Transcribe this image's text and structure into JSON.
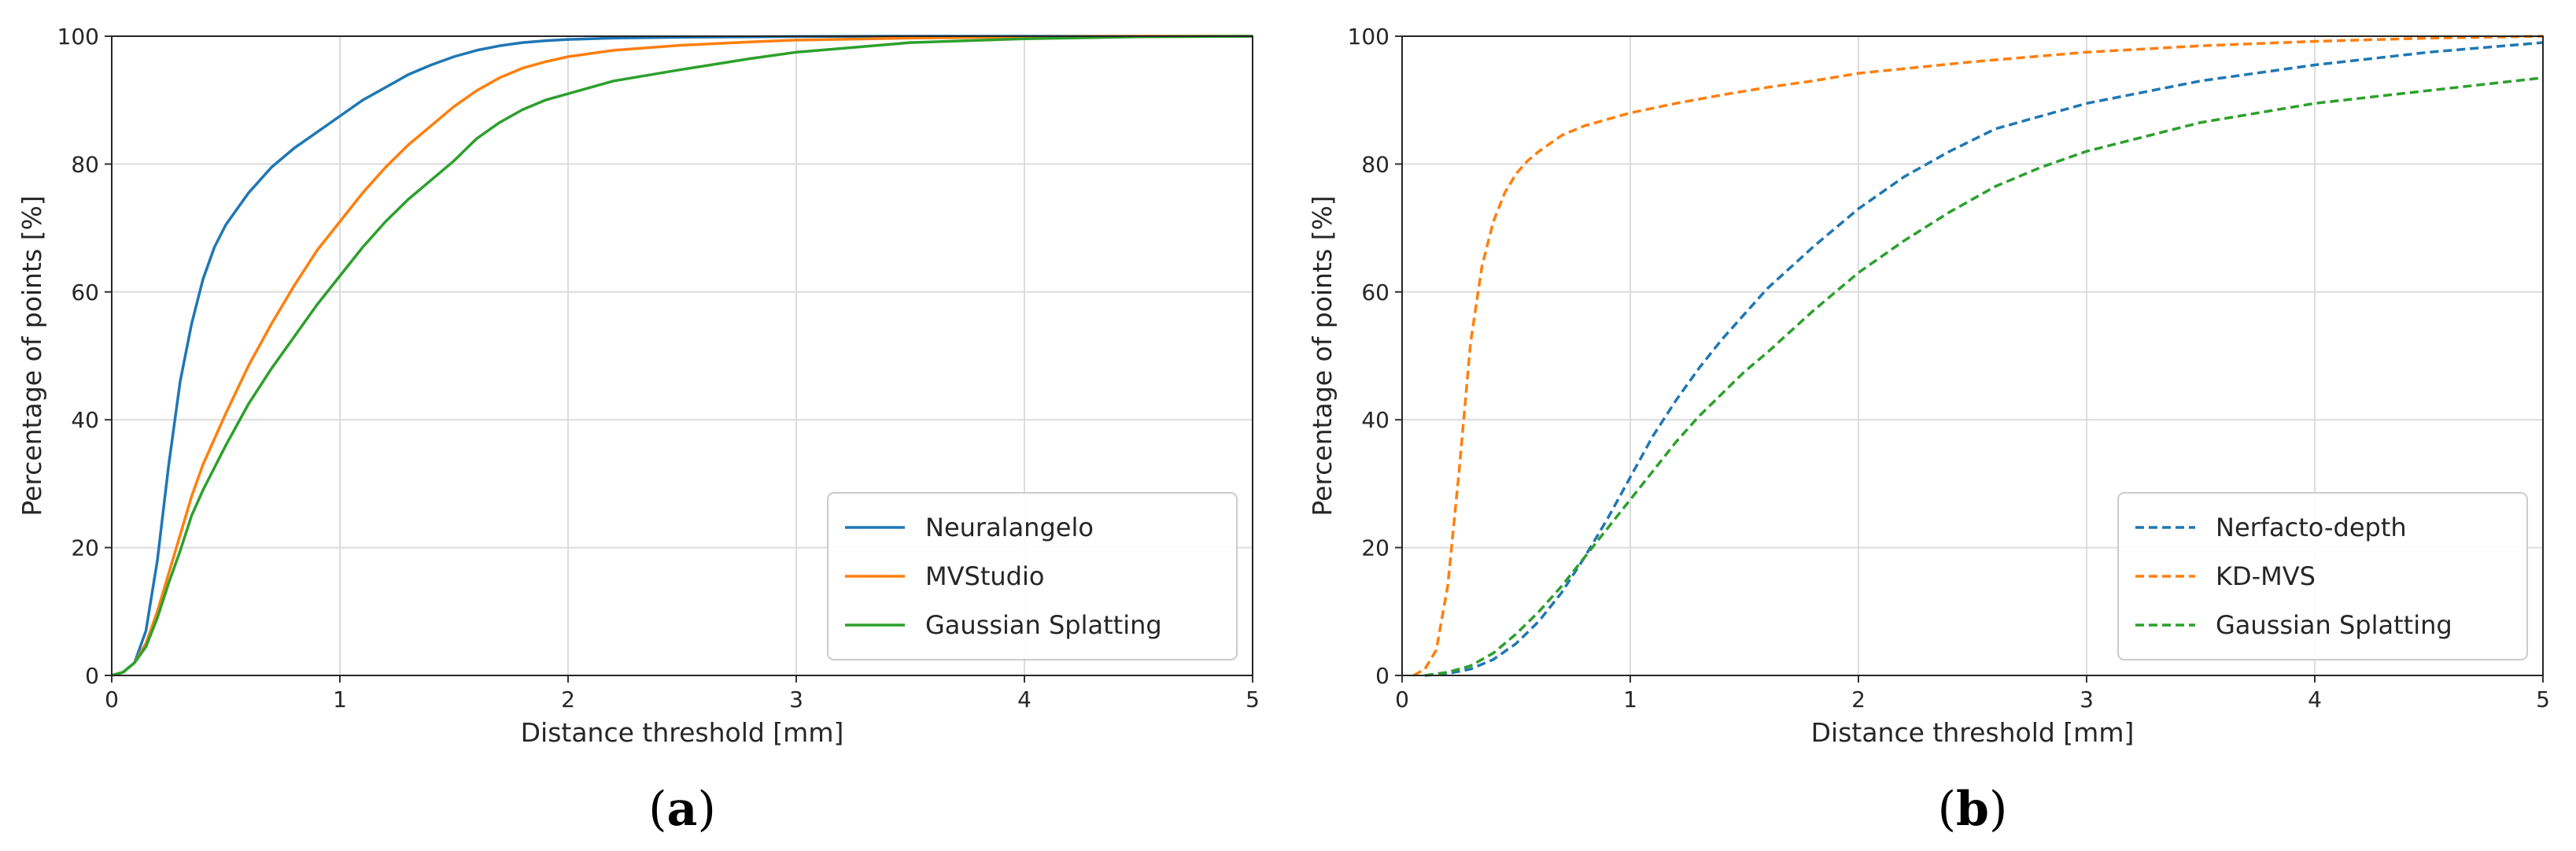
{
  "chart_data": [
    {
      "type": "line",
      "panel_label": {
        "open": "(",
        "letter": "a",
        "close": ")"
      },
      "xlabel": "Distance threshold [mm]",
      "ylabel": "Percentage of points [%]",
      "xlim": [
        0,
        5
      ],
      "ylim": [
        0,
        100
      ],
      "xticks": [
        "0",
        "1",
        "2",
        "3",
        "4",
        "5"
      ],
      "yticks": [
        "0",
        "20",
        "40",
        "60",
        "80",
        "100"
      ],
      "grid": true,
      "legend_position": "lower-right",
      "line_style": "solid",
      "series": [
        {
          "name": "Neuralangelo",
          "color": "#1f77b4",
          "x": [
            0,
            0.05,
            0.1,
            0.15,
            0.2,
            0.25,
            0.3,
            0.35,
            0.4,
            0.45,
            0.5,
            0.6,
            0.7,
            0.8,
            0.9,
            1.0,
            1.1,
            1.2,
            1.3,
            1.4,
            1.5,
            1.6,
            1.7,
            1.8,
            1.9,
            2.0,
            2.2,
            2.5,
            3.0,
            3.5,
            4.0,
            5.0
          ],
          "y": [
            0,
            0.5,
            2,
            7,
            18,
            33,
            46,
            55,
            62,
            67,
            70.5,
            75.5,
            79.5,
            82.5,
            85,
            87.5,
            90,
            92,
            94,
            95.5,
            96.8,
            97.8,
            98.5,
            99,
            99.3,
            99.5,
            99.7,
            99.85,
            99.95,
            100,
            100,
            100
          ]
        },
        {
          "name": "MVStudio",
          "color": "#ff7f0e",
          "x": [
            0,
            0.05,
            0.1,
            0.15,
            0.2,
            0.25,
            0.3,
            0.35,
            0.4,
            0.5,
            0.6,
            0.7,
            0.8,
            0.9,
            1.0,
            1.1,
            1.2,
            1.3,
            1.4,
            1.5,
            1.6,
            1.7,
            1.8,
            1.9,
            2.0,
            2.2,
            2.5,
            2.8,
            3.0,
            3.5,
            4.0,
            4.5,
            5.0
          ],
          "y": [
            0,
            0.5,
            2,
            5,
            10,
            16,
            22,
            28,
            33,
            41,
            48.5,
            55,
            61,
            66.5,
            71,
            75.5,
            79.5,
            83,
            86,
            89,
            91.5,
            93.5,
            95,
            96,
            96.8,
            97.8,
            98.6,
            99.1,
            99.4,
            99.7,
            99.9,
            100,
            100
          ]
        },
        {
          "name": "Gaussian Splatting",
          "color": "#2ca02c",
          "x": [
            0,
            0.05,
            0.1,
            0.15,
            0.2,
            0.25,
            0.3,
            0.35,
            0.4,
            0.5,
            0.6,
            0.7,
            0.8,
            0.9,
            1.0,
            1.1,
            1.2,
            1.3,
            1.4,
            1.5,
            1.6,
            1.7,
            1.8,
            1.9,
            2.0,
            2.2,
            2.5,
            2.8,
            3.0,
            3.5,
            4.0,
            4.5,
            5.0
          ],
          "y": [
            0,
            0.5,
            2,
            4.5,
            9,
            14.5,
            19.5,
            25,
            29,
            36,
            42.5,
            48,
            53,
            58,
            62.5,
            67,
            71,
            74.5,
            77.5,
            80.5,
            84,
            86.5,
            88.5,
            90,
            91,
            93,
            94.8,
            96.5,
            97.5,
            99,
            99.6,
            99.9,
            100
          ]
        }
      ]
    },
    {
      "type": "line",
      "panel_label": {
        "open": "(",
        "letter": "b",
        "close": ")"
      },
      "xlabel": "Distance threshold [mm]",
      "ylabel": "Percentage of points [%]",
      "xlim": [
        0,
        5
      ],
      "ylim": [
        0,
        100
      ],
      "xticks": [
        "0",
        "1",
        "2",
        "3",
        "4",
        "5"
      ],
      "yticks": [
        "0",
        "20",
        "40",
        "60",
        "80",
        "100"
      ],
      "grid": true,
      "legend_position": "lower-right",
      "line_style": "dashed",
      "series": [
        {
          "name": "Nerfacto-depth",
          "color": "#1f77b4",
          "x": [
            0.1,
            0.2,
            0.3,
            0.4,
            0.5,
            0.6,
            0.7,
            0.8,
            0.9,
            1.0,
            1.1,
            1.2,
            1.3,
            1.4,
            1.5,
            1.6,
            1.8,
            2.0,
            2.2,
            2.4,
            2.6,
            2.8,
            3.0,
            3.5,
            4.0,
            4.5,
            5.0
          ],
          "y": [
            0,
            0.3,
            1,
            2.5,
            5,
            8.5,
            13,
            18.5,
            24.5,
            31,
            37.5,
            43,
            48,
            52.5,
            56.5,
            60.5,
            67,
            73,
            78,
            82,
            85.5,
            87.5,
            89.5,
            93,
            95.5,
            97.5,
            99
          ]
        },
        {
          "name": "KD-MVS",
          "color": "#ff7f0e",
          "x": [
            0.05,
            0.1,
            0.15,
            0.2,
            0.25,
            0.3,
            0.35,
            0.4,
            0.45,
            0.5,
            0.55,
            0.6,
            0.7,
            0.8,
            0.9,
            1.0,
            1.2,
            1.4,
            1.6,
            1.8,
            2.0,
            2.5,
            3.0,
            3.5,
            4.0,
            4.5,
            5.0
          ],
          "y": [
            0,
            1,
            4,
            14,
            32,
            52,
            64,
            71,
            75.5,
            78.5,
            80.5,
            82,
            84.5,
            86,
            87,
            88,
            89.5,
            90.8,
            92,
            93,
            94.2,
            96,
            97.5,
            98.5,
            99.2,
            99.7,
            100
          ]
        },
        {
          "name": "Gaussian Splatting",
          "color": "#2ca02c",
          "x": [
            0.1,
            0.2,
            0.3,
            0.4,
            0.5,
            0.6,
            0.7,
            0.8,
            0.9,
            1.0,
            1.1,
            1.2,
            1.3,
            1.4,
            1.5,
            1.6,
            1.8,
            2.0,
            2.2,
            2.4,
            2.6,
            2.8,
            3.0,
            3.5,
            4.0,
            4.5,
            5.0
          ],
          "y": [
            0,
            0.5,
            1.5,
            3.5,
            6.5,
            10,
            14,
            18.5,
            23,
            27.5,
            32,
            36.5,
            40.5,
            44,
            47.5,
            50.5,
            57,
            63,
            68,
            72.5,
            76.5,
            79.5,
            82,
            86.5,
            89.5,
            91.5,
            93.5
          ]
        }
      ]
    }
  ]
}
